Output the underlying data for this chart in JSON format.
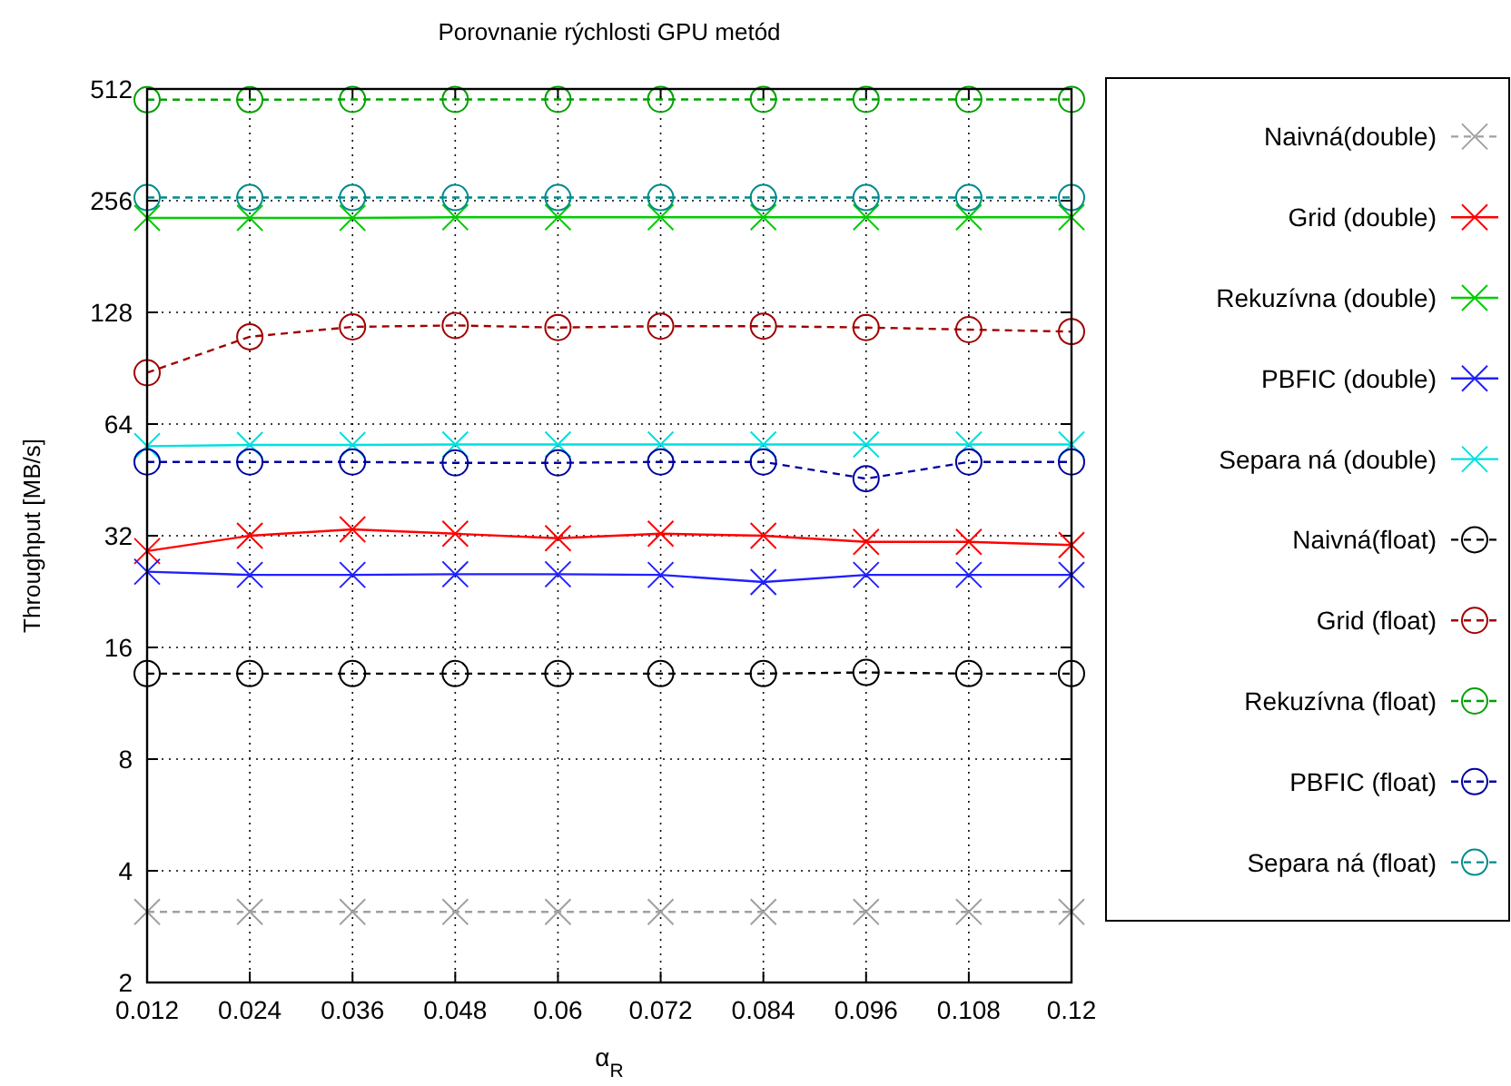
{
  "chart_data": {
    "type": "line",
    "title": "Porovnanie rýchlosti GPU metód",
    "xlabel": "α$_{R}$",
    "ylabel": "Throughput [MB/s]",
    "x": [
      0.012,
      0.024,
      0.036,
      0.048,
      0.06,
      0.072,
      0.084,
      0.096,
      0.108,
      0.12
    ],
    "xlim": [
      0.012,
      0.12
    ],
    "xticks": [
      0.012,
      0.024,
      0.036,
      0.048,
      0.06,
      0.072,
      0.084,
      0.096,
      0.108,
      0.12
    ],
    "ylim": [
      2,
      512
    ],
    "yticks": [
      2,
      4,
      8,
      16,
      32,
      64,
      128,
      256,
      512
    ],
    "log": "y",
    "grid": true,
    "legend": "right",
    "series": [
      {
        "name": "Naivná(double)",
        "color": "#a0a0a0",
        "marker": "cross",
        "line_style": "dashed",
        "values": [
          3.1,
          3.1,
          3.1,
          3.1,
          3.1,
          3.1,
          3.1,
          3.1,
          3.1,
          3.1
        ]
      },
      {
        "name": "Grid (double)",
        "color": "#ff0000",
        "marker": "cross",
        "line_style": "solid",
        "values": [
          29.1,
          32,
          33.3,
          32.4,
          31.5,
          32.4,
          32,
          30.8,
          30.8,
          30.2
        ]
      },
      {
        "name": "Rekuzívna (double)",
        "color": "#00cc00",
        "marker": "cross",
        "line_style": "solid",
        "values": [
          230,
          230,
          230,
          231,
          231,
          231,
          231,
          231,
          231,
          231
        ]
      },
      {
        "name": "PBFIC (double)",
        "color": "#2020ff",
        "marker": "cross",
        "line_style": "solid",
        "values": [
          25.6,
          25.1,
          25.1,
          25.2,
          25.2,
          25.1,
          24,
          25.1,
          25.1,
          25.1
        ]
      },
      {
        "name": "Separa ná (double)",
        "color": "#00e0e0",
        "marker": "cross",
        "line_style": "solid",
        "values": [
          55.8,
          56.2,
          56.2,
          56.4,
          56.4,
          56.4,
          56.4,
          56.4,
          56.4,
          56.4
        ]
      },
      {
        "name": "Naivná(float)",
        "color": "#000000",
        "marker": "circle",
        "line_style": "dashed",
        "values": [
          13.6,
          13.6,
          13.6,
          13.6,
          13.6,
          13.6,
          13.6,
          13.7,
          13.6,
          13.6
        ]
      },
      {
        "name": "Grid (float)",
        "color": "#a00000",
        "marker": "circle",
        "line_style": "dashed",
        "values": [
          88,
          110,
          117,
          118,
          116.5,
          117.5,
          117.5,
          116.5,
          115,
          113.6
        ]
      },
      {
        "name": "Rekuzívna (float)",
        "color": "#00a000",
        "marker": "circle",
        "line_style": "dashed",
        "values": [
          479,
          479,
          480,
          480,
          480,
          480,
          480,
          480,
          480,
          480
        ]
      },
      {
        "name": "PBFIC (float)",
        "color": "#0000a0",
        "marker": "circle",
        "line_style": "dashed",
        "values": [
          50.6,
          50.6,
          50.6,
          50.3,
          50.3,
          50.6,
          50.6,
          45.6,
          50.6,
          50.6
        ]
      },
      {
        "name": "Separa ná (float)",
        "color": "#008b8b",
        "marker": "circle",
        "line_style": "dashed",
        "values": [
          261,
          261,
          261,
          261,
          261,
          261,
          261,
          261,
          261,
          261
        ]
      }
    ]
  }
}
